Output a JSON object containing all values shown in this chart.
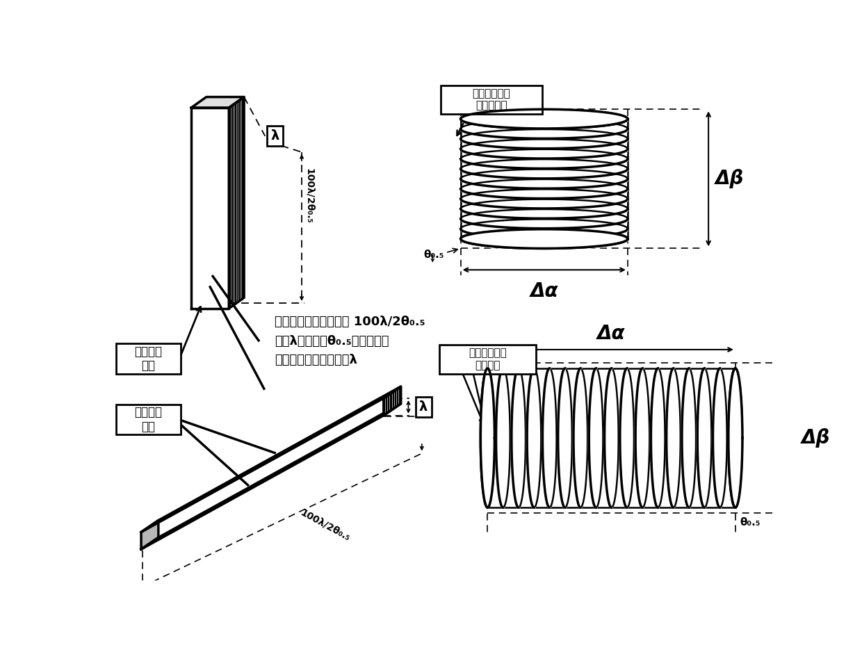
{
  "bg_color": "#ffffff",
  "label_elevation_scan": "仰仰子阵天线\n继波束扫描",
  "label_azimuth_scan": "方位子阵天线\n波束扫描",
  "label_elevation_antenna": "仰仰子阵\n天线",
  "label_azimuth_antenna": "方位子阵\n天线",
  "label_desc1": "两个子阵天线有效长度 100λ/2θ₀.₅",
  "label_desc2": "其中λ为波长，θ₀.₅为波束宽度",
  "label_desc3": "辐射嚏射小开口尺寸为λ",
  "delta_alpha": "Δα",
  "delta_beta": "Δβ",
  "lambda_sym": "λ",
  "theta_sym": "θ₀.₅",
  "dim_label": "100λ/2θ₀.₅"
}
